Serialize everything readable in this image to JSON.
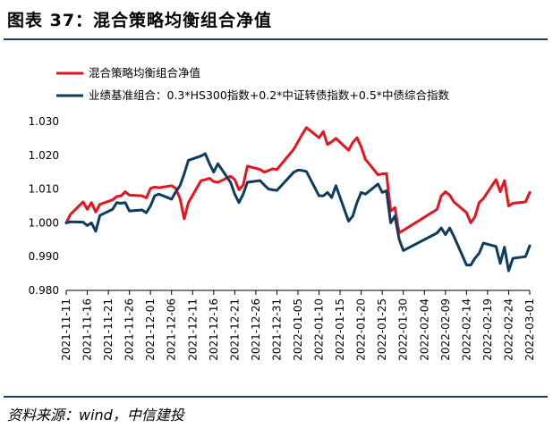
{
  "figure": {
    "title": "图表 37：混合策略均衡组合净值",
    "source": "资料来源：wind，中信建投"
  },
  "chart_data": {
    "type": "line",
    "title": "混合策略均衡组合净值",
    "ylim": [
      0.98,
      1.03
    ],
    "yticks": [
      "0.980",
      "0.990",
      "1.000",
      "1.010",
      "1.020",
      "1.030"
    ],
    "xlim": [
      "2021-11-11",
      "2022-03-01"
    ],
    "xticks": [
      "2021-11-11",
      "2021-11-16",
      "2021-11-21",
      "2021-11-26",
      "2021-12-01",
      "2021-12-06",
      "2021-12-11",
      "2021-12-16",
      "2021-12-21",
      "2021-12-26",
      "2021-12-31",
      "2022-01-05",
      "2022-01-10",
      "2022-01-15",
      "2022-01-20",
      "2022-01-25",
      "2022-01-30",
      "2022-02-04",
      "2022-02-09",
      "2022-02-14",
      "2022-02-19",
      "2022-02-24",
      "2022-03-01"
    ],
    "legend_position": "top-left",
    "grid": false,
    "series": [
      {
        "name": "混合策略均衡组合净值",
        "color": "#e6141e",
        "points": [
          [
            "2021-11-11",
            1.0
          ],
          [
            "2021-11-12",
            1.0025
          ],
          [
            "2021-11-15",
            1.0062
          ],
          [
            "2021-11-16",
            1.004
          ],
          [
            "2021-11-17",
            1.006
          ],
          [
            "2021-11-18",
            1.0032
          ],
          [
            "2021-11-19",
            1.0055
          ],
          [
            "2021-11-22",
            1.0068
          ],
          [
            "2021-11-23",
            1.0078
          ],
          [
            "2021-11-24",
            1.008
          ],
          [
            "2021-11-25",
            1.0092
          ],
          [
            "2021-11-26",
            1.0082
          ],
          [
            "2021-11-29",
            1.008
          ],
          [
            "2021-11-30",
            1.0074
          ],
          [
            "2021-12-01",
            1.0102
          ],
          [
            "2021-12-02",
            1.0106
          ],
          [
            "2021-12-03",
            1.0104
          ],
          [
            "2021-12-06",
            1.011
          ],
          [
            "2021-12-07",
            1.0102
          ],
          [
            "2021-12-08",
            1.0072
          ],
          [
            "2021-12-09",
            1.0012
          ],
          [
            "2021-12-10",
            1.006
          ],
          [
            "2021-12-13",
            1.0125
          ],
          [
            "2021-12-14",
            1.0128
          ],
          [
            "2021-12-15",
            1.0132
          ],
          [
            "2021-12-16",
            1.0122
          ],
          [
            "2021-12-17",
            1.012
          ],
          [
            "2021-12-20",
            1.0138
          ],
          [
            "2021-12-21",
            1.0128
          ],
          [
            "2021-12-22",
            1.0098
          ],
          [
            "2021-12-23",
            1.0112
          ],
          [
            "2021-12-24",
            1.0168
          ],
          [
            "2021-12-27",
            1.0158
          ],
          [
            "2021-12-28",
            1.015
          ],
          [
            "2021-12-29",
            1.0155
          ],
          [
            "2021-12-30",
            1.016
          ],
          [
            "2021-12-31",
            1.0158
          ],
          [
            "2022-01-04",
            1.0218
          ],
          [
            "2022-01-05",
            1.024
          ],
          [
            "2022-01-06",
            1.0262
          ],
          [
            "2022-01-07",
            1.0282
          ],
          [
            "2022-01-10",
            1.0252
          ],
          [
            "2022-01-11",
            1.027
          ],
          [
            "2022-01-12",
            1.0232
          ],
          [
            "2022-01-13",
            1.024
          ],
          [
            "2022-01-14",
            1.025
          ],
          [
            "2022-01-17",
            1.0215
          ],
          [
            "2022-01-18",
            1.0238
          ],
          [
            "2022-01-19",
            1.0252
          ],
          [
            "2022-01-20",
            1.0225
          ],
          [
            "2022-01-21",
            1.0188
          ],
          [
            "2022-01-24",
            1.0142
          ],
          [
            "2022-01-25",
            1.0145
          ],
          [
            "2022-01-26",
            1.0146
          ],
          [
            "2022-01-27",
            1.0035
          ],
          [
            "2022-01-28",
            1.0045
          ],
          [
            "2022-01-29",
            0.997
          ],
          [
            "2022-02-07",
            1.004
          ],
          [
            "2022-02-08",
            1.008
          ],
          [
            "2022-02-09",
            1.0092
          ],
          [
            "2022-02-10",
            1.0082
          ],
          [
            "2022-02-11",
            1.0062
          ],
          [
            "2022-02-14",
            1.003
          ],
          [
            "2022-02-15",
            1.0
          ],
          [
            "2022-02-16",
            1.0018
          ],
          [
            "2022-02-17",
            1.006
          ],
          [
            "2022-02-18",
            1.0072
          ],
          [
            "2022-02-21",
            1.0128
          ],
          [
            "2022-02-22",
            1.0092
          ],
          [
            "2022-02-23",
            1.0125
          ],
          [
            "2022-02-24",
            1.005
          ],
          [
            "2022-02-25",
            1.0058
          ],
          [
            "2022-02-28",
            1.0062
          ],
          [
            "2022-03-01",
            1.009
          ]
        ]
      },
      {
        "name": "业绩基准组合：0.3*HS300指数+0.2*中证转债指数+0.5*中债综合指数",
        "color": "#0e3c5e",
        "points": [
          [
            "2021-11-11",
            1.0
          ],
          [
            "2021-11-12",
            1.0003
          ],
          [
            "2021-11-15",
            1.0002
          ],
          [
            "2021-11-16",
            0.9992
          ],
          [
            "2021-11-17",
            1.0
          ],
          [
            "2021-11-18",
            0.9975
          ],
          [
            "2021-11-19",
            1.0022
          ],
          [
            "2021-11-22",
            1.004
          ],
          [
            "2021-11-23",
            1.006
          ],
          [
            "2021-11-24",
            1.0058
          ],
          [
            "2021-11-25",
            1.006
          ],
          [
            "2021-11-26",
            1.0035
          ],
          [
            "2021-11-29",
            1.0038
          ],
          [
            "2021-11-30",
            1.003
          ],
          [
            "2021-12-01",
            1.005
          ],
          [
            "2021-12-02",
            1.008
          ],
          [
            "2021-12-03",
            1.0085
          ],
          [
            "2021-12-06",
            1.007
          ],
          [
            "2021-12-07",
            1.0092
          ],
          [
            "2021-12-08",
            1.011
          ],
          [
            "2021-12-09",
            1.0145
          ],
          [
            "2021-12-10",
            1.0185
          ],
          [
            "2021-12-13",
            1.0198
          ],
          [
            "2021-12-14",
            1.0205
          ],
          [
            "2021-12-15",
            1.0175
          ],
          [
            "2021-12-16",
            1.015
          ],
          [
            "2021-12-17",
            1.0175
          ],
          [
            "2021-12-20",
            1.012
          ],
          [
            "2021-12-21",
            1.0085
          ],
          [
            "2021-12-22",
            1.006
          ],
          [
            "2021-12-23",
            1.0085
          ],
          [
            "2021-12-24",
            1.012
          ],
          [
            "2021-12-27",
            1.0125
          ],
          [
            "2021-12-28",
            1.0112
          ],
          [
            "2021-12-29",
            1.01
          ],
          [
            "2021-12-30",
            1.0098
          ],
          [
            "2021-12-31",
            1.0096
          ],
          [
            "2022-01-04",
            1.015
          ],
          [
            "2022-01-05",
            1.0156
          ],
          [
            "2022-01-06",
            1.0155
          ],
          [
            "2022-01-07",
            1.0152
          ],
          [
            "2022-01-10",
            1.008
          ],
          [
            "2022-01-11",
            1.008
          ],
          [
            "2022-01-12",
            1.009
          ],
          [
            "2022-01-13",
            1.0075
          ],
          [
            "2022-01-14",
            1.011
          ],
          [
            "2022-01-17",
            1.0005
          ],
          [
            "2022-01-18",
            1.002
          ],
          [
            "2022-01-19",
            1.006
          ],
          [
            "2022-01-20",
            1.009
          ],
          [
            "2022-01-21",
            1.0085
          ],
          [
            "2022-01-24",
            1.0115
          ],
          [
            "2022-01-25",
            1.009
          ],
          [
            "2022-01-26",
            1.0095
          ],
          [
            "2022-01-27",
            1.0
          ],
          [
            "2022-01-28",
            1.002
          ],
          [
            "2022-01-29",
            0.9952
          ],
          [
            "2022-01-30",
            0.9918
          ],
          [
            "2022-02-07",
            0.997
          ],
          [
            "2022-02-08",
            0.9985
          ],
          [
            "2022-02-09",
            0.9965
          ],
          [
            "2022-02-10",
            0.9985
          ],
          [
            "2022-02-11",
            0.996
          ],
          [
            "2022-02-14",
            0.9875
          ],
          [
            "2022-02-15",
            0.9875
          ],
          [
            "2022-02-16",
            0.9895
          ],
          [
            "2022-02-17",
            0.991
          ],
          [
            "2022-02-18",
            0.994
          ],
          [
            "2022-02-21",
            0.993
          ],
          [
            "2022-02-22",
            0.988
          ],
          [
            "2022-02-23",
            0.9928
          ],
          [
            "2022-02-24",
            0.9858
          ],
          [
            "2022-02-25",
            0.9895
          ],
          [
            "2022-02-28",
            0.99
          ],
          [
            "2022-03-01",
            0.9932
          ]
        ]
      }
    ]
  }
}
